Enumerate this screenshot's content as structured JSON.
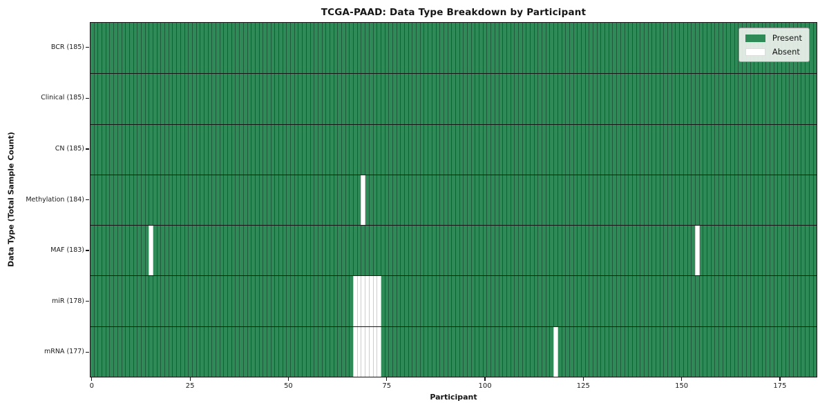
{
  "figure": {
    "title": "TCGA-PAAD: Data Type Breakdown by Participant",
    "xlabel": "Participant",
    "ylabel": "Data Type (Total Sample Count)"
  },
  "legend": {
    "present_label": "Present",
    "absent_label": "Absent"
  },
  "chart_data": {
    "type": "heatmap",
    "title": "TCGA-PAAD: Data Type Breakdown by Participant",
    "xlabel": "Participant",
    "ylabel": "Data Type (Total Sample Count)",
    "n_participants": 185,
    "x_axis_range": [
      -0.5,
      184.5
    ],
    "xticks": [
      0,
      25,
      50,
      75,
      100,
      125,
      150,
      175
    ],
    "grid": false,
    "legend_position": "upper right",
    "legend": [
      {
        "label": "Present",
        "color": "#2e8b57"
      },
      {
        "label": "Absent",
        "color": "#ffffff"
      }
    ],
    "colors": {
      "present": "#2e8b57",
      "absent": "#ffffff",
      "present_edge": "#1d5a3a",
      "absent_edge": "#cccccc",
      "separator": "#141414"
    },
    "rows": [
      {
        "name": "BCR",
        "label": "BCR (185)",
        "total": 185,
        "absent_participants": []
      },
      {
        "name": "Clinical",
        "label": "Clinical (185)",
        "total": 185,
        "absent_participants": []
      },
      {
        "name": "CN",
        "label": "CN (185)",
        "total": 185,
        "absent_participants": []
      },
      {
        "name": "Methylation",
        "label": "Methylation (184)",
        "total": 184,
        "absent_participants": [
          69
        ]
      },
      {
        "name": "MAF",
        "label": "MAF (183)",
        "total": 183,
        "absent_participants": [
          15,
          154
        ]
      },
      {
        "name": "miR",
        "label": "miR (178)",
        "total": 178,
        "absent_participants": [
          67,
          68,
          69,
          70,
          71,
          72,
          73
        ]
      },
      {
        "name": "mRNA",
        "label": "mRNA (177)",
        "total": 177,
        "absent_participants": [
          67,
          68,
          69,
          70,
          71,
          72,
          73,
          118
        ]
      }
    ]
  }
}
